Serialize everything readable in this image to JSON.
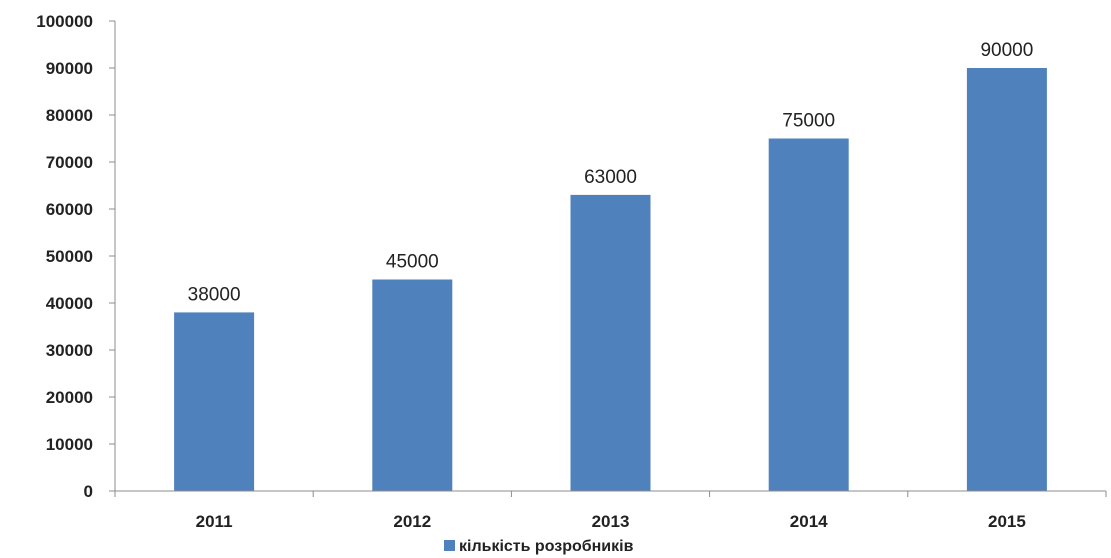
{
  "chart_data": {
    "type": "bar",
    "categories": [
      "2011",
      "2012",
      "2013",
      "2014",
      "2015"
    ],
    "series": [
      {
        "name": "кількість розробників",
        "values": [
          38000,
          45000,
          63000,
          75000,
          90000
        ],
        "data_labels": [
          "38000",
          "45000",
          "63000",
          "75000",
          "90000"
        ]
      }
    ],
    "yticks": [
      "0",
      "10000",
      "20000",
      "30000",
      "40000",
      "50000",
      "60000",
      "70000",
      "80000",
      "90000",
      "100000"
    ],
    "ylim": [
      0,
      100000
    ],
    "grid": false,
    "legend": "bottom-center",
    "colors": {
      "bar": "#4F81BD",
      "axis": "#8C8C8C",
      "text": "#222222"
    }
  }
}
